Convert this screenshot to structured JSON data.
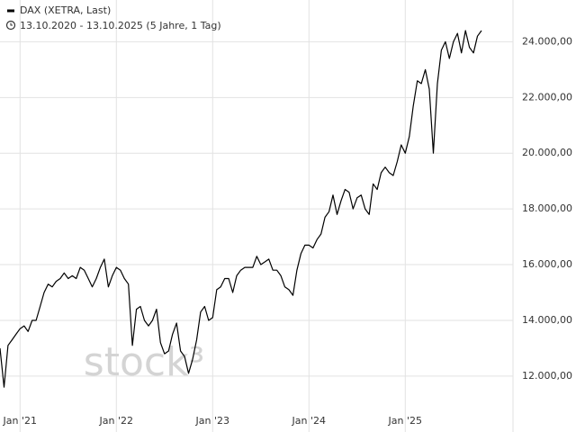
{
  "chart_data": {
    "type": "line",
    "title": "DAX (XETRA, Last)",
    "subtitle": "13.10.2020 - 13.10.2025  (5 Jahre, 1 Tag)",
    "watermark": "stock³",
    "categories": [
      null,
      null,
      null,
      null,
      null,
      "Jan '21",
      null,
      null,
      null,
      null,
      null,
      null,
      null,
      null,
      null,
      null,
      null,
      null,
      null,
      null,
      null,
      null,
      null,
      null,
      null,
      null,
      null,
      null,
      null,
      "Jan '22",
      null,
      null,
      null,
      null,
      null,
      null,
      null,
      null,
      null,
      null,
      null,
      null,
      null,
      null,
      null,
      null,
      null,
      null,
      null,
      null,
      null,
      null,
      null,
      "Jan '23",
      null,
      null,
      null,
      null,
      null,
      null,
      null,
      null,
      null,
      null,
      null,
      null,
      null,
      null,
      null,
      null,
      null,
      null,
      null,
      null,
      null,
      null,
      null,
      "Jan '24",
      null,
      null,
      null,
      null,
      null,
      null,
      null,
      null,
      null,
      null,
      null,
      null,
      null,
      null,
      null,
      null,
      null,
      null,
      null,
      null,
      null,
      null,
      null,
      "Jan '25",
      null,
      null,
      null,
      null,
      null,
      null,
      null,
      null,
      null,
      null,
      null,
      null,
      null,
      null,
      null,
      null,
      null,
      null,
      null
    ],
    "series": [
      {
        "name": "DAX (XETRA, Last)",
        "color": "#000000",
        "values": [
          13000,
          11600,
          13100,
          13300,
          13500,
          13700,
          13800,
          13600,
          14000,
          14000,
          14500,
          15000,
          15300,
          15200,
          15400,
          15500,
          15700,
          15500,
          15600,
          15500,
          15900,
          15800,
          15500,
          15200,
          15500,
          15900,
          16200,
          15200,
          15600,
          15900,
          15800,
          15500,
          15300,
          13100,
          14400,
          14500,
          14000,
          13800,
          14000,
          14400,
          13200,
          12800,
          12900,
          13500,
          13900,
          12900,
          12700,
          12100,
          12600,
          13300,
          14300,
          14500,
          14000,
          14100,
          15100,
          15200,
          15500,
          15500,
          15000,
          15600,
          15800,
          15900,
          15900,
          15900,
          16300,
          16000,
          16100,
          16200,
          15800,
          15800,
          15600,
          15200,
          15100,
          14900,
          15800,
          16400,
          16700,
          16700,
          16600,
          16900,
          17100,
          17700,
          17900,
          18500,
          17800,
          18300,
          18700,
          18600,
          18000,
          18400,
          18500,
          18000,
          17800,
          18900,
          18700,
          19300,
          19500,
          19300,
          19200,
          19700,
          20300,
          20000,
          20600,
          21700,
          22600,
          22500,
          23000,
          22300,
          20000,
          22500,
          23700,
          24000,
          23400,
          24000,
          24300,
          23600,
          24400,
          23800,
          23600,
          24200,
          24400
        ]
      }
    ],
    "ylim": [
      10800,
      25500
    ],
    "yticks": [
      {
        "value": 12000,
        "label": "12.000,00"
      },
      {
        "value": 14000,
        "label": "14.000,00"
      },
      {
        "value": 16000,
        "label": "16.000,00"
      },
      {
        "value": 18000,
        "label": "18.000,00"
      },
      {
        "value": 20000,
        "label": "20.000,00"
      },
      {
        "value": 22000,
        "label": "22.000,00"
      },
      {
        "value": 24000,
        "label": "24.000,00"
      }
    ],
    "grid": true
  }
}
